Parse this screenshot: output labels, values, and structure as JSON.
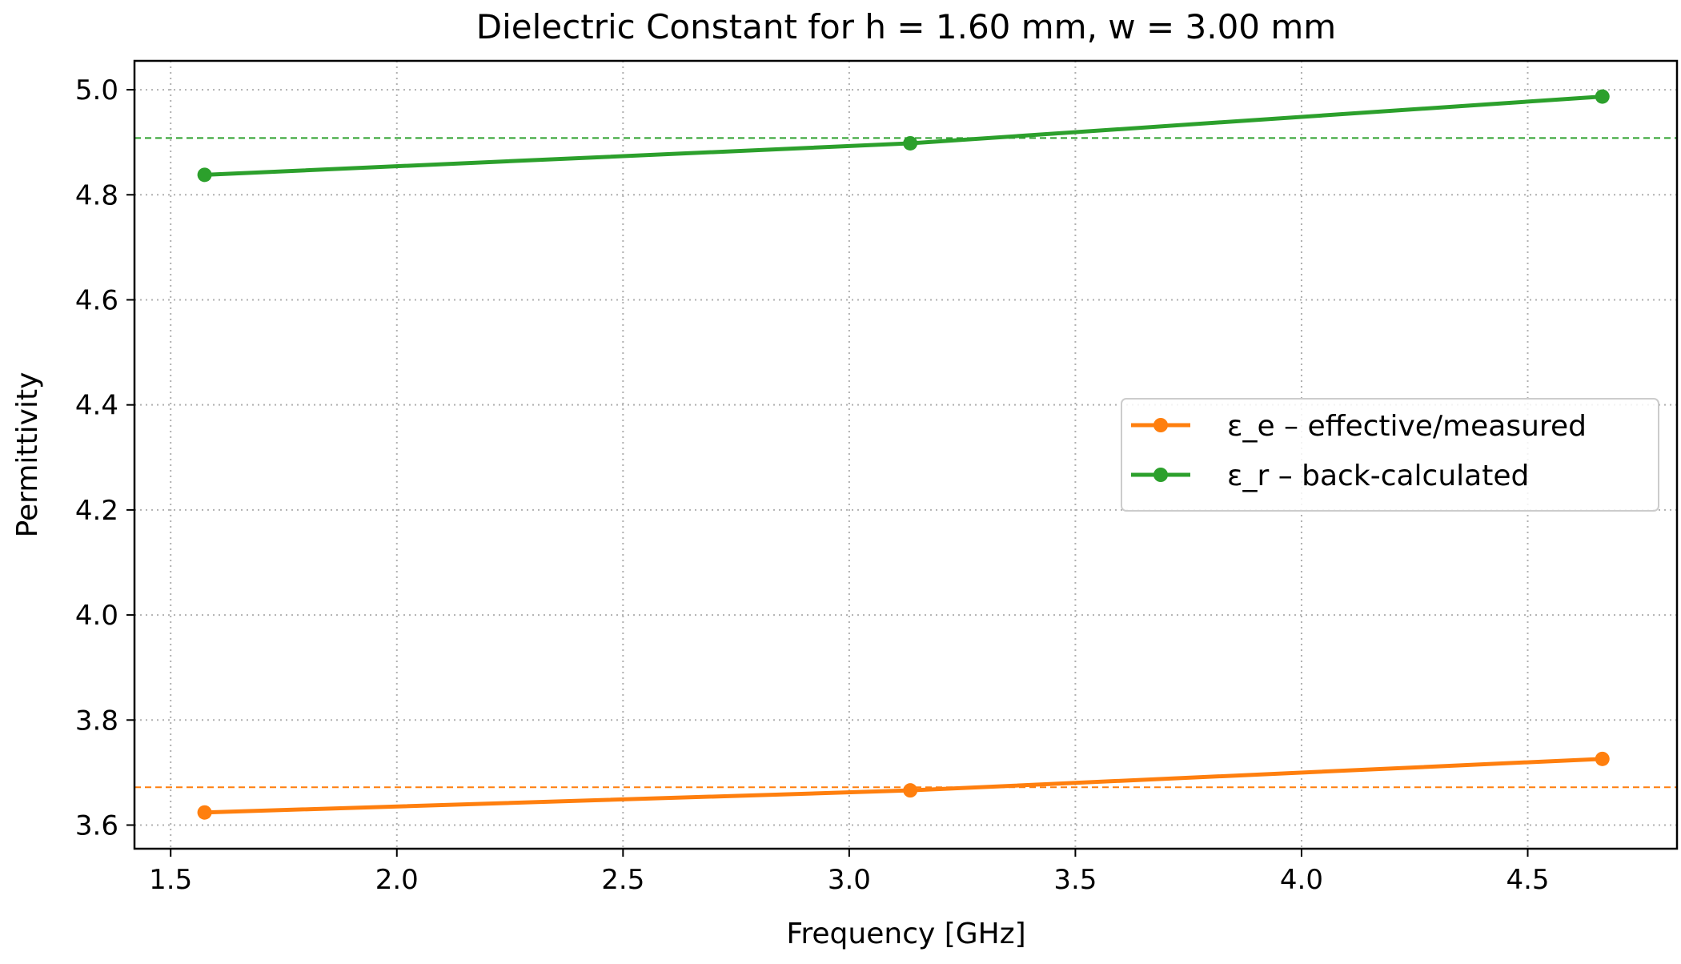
{
  "chart_data": {
    "type": "line",
    "title": "Dielectric Constant for h = 1.60 mm, w = 3.00 mm",
    "xlabel": "Frequency [GHz]",
    "ylabel": "Permittivity",
    "xlim": [
      1.42,
      4.83
    ],
    "ylim": [
      3.555,
      5.055
    ],
    "xticks": [
      1.5,
      2.0,
      2.5,
      3.0,
      3.5,
      4.0,
      4.5
    ],
    "xtick_labels": [
      "1.5",
      "2.0",
      "2.5",
      "3.0",
      "3.5",
      "4.0",
      "4.5"
    ],
    "yticks": [
      3.6,
      3.8,
      4.0,
      4.2,
      4.4,
      4.6,
      4.8,
      5.0
    ],
    "ytick_labels": [
      "3.6",
      "3.8",
      "4.0",
      "4.2",
      "4.4",
      "4.6",
      "4.8",
      "5.0"
    ],
    "grid": true,
    "legend_position": "center-right",
    "series": [
      {
        "name": "ε_e – effective/measured",
        "color": "#ff7f0e",
        "x": [
          1.575,
          3.135,
          4.665
        ],
        "y": [
          3.624,
          3.666,
          3.726
        ],
        "mean_line": 3.672
      },
      {
        "name": "ε_r – back-calculated",
        "color": "#2ca02c",
        "x": [
          1.575,
          3.135,
          4.665
        ],
        "y": [
          4.838,
          4.898,
          4.987
        ],
        "mean_line": 4.908
      }
    ]
  }
}
